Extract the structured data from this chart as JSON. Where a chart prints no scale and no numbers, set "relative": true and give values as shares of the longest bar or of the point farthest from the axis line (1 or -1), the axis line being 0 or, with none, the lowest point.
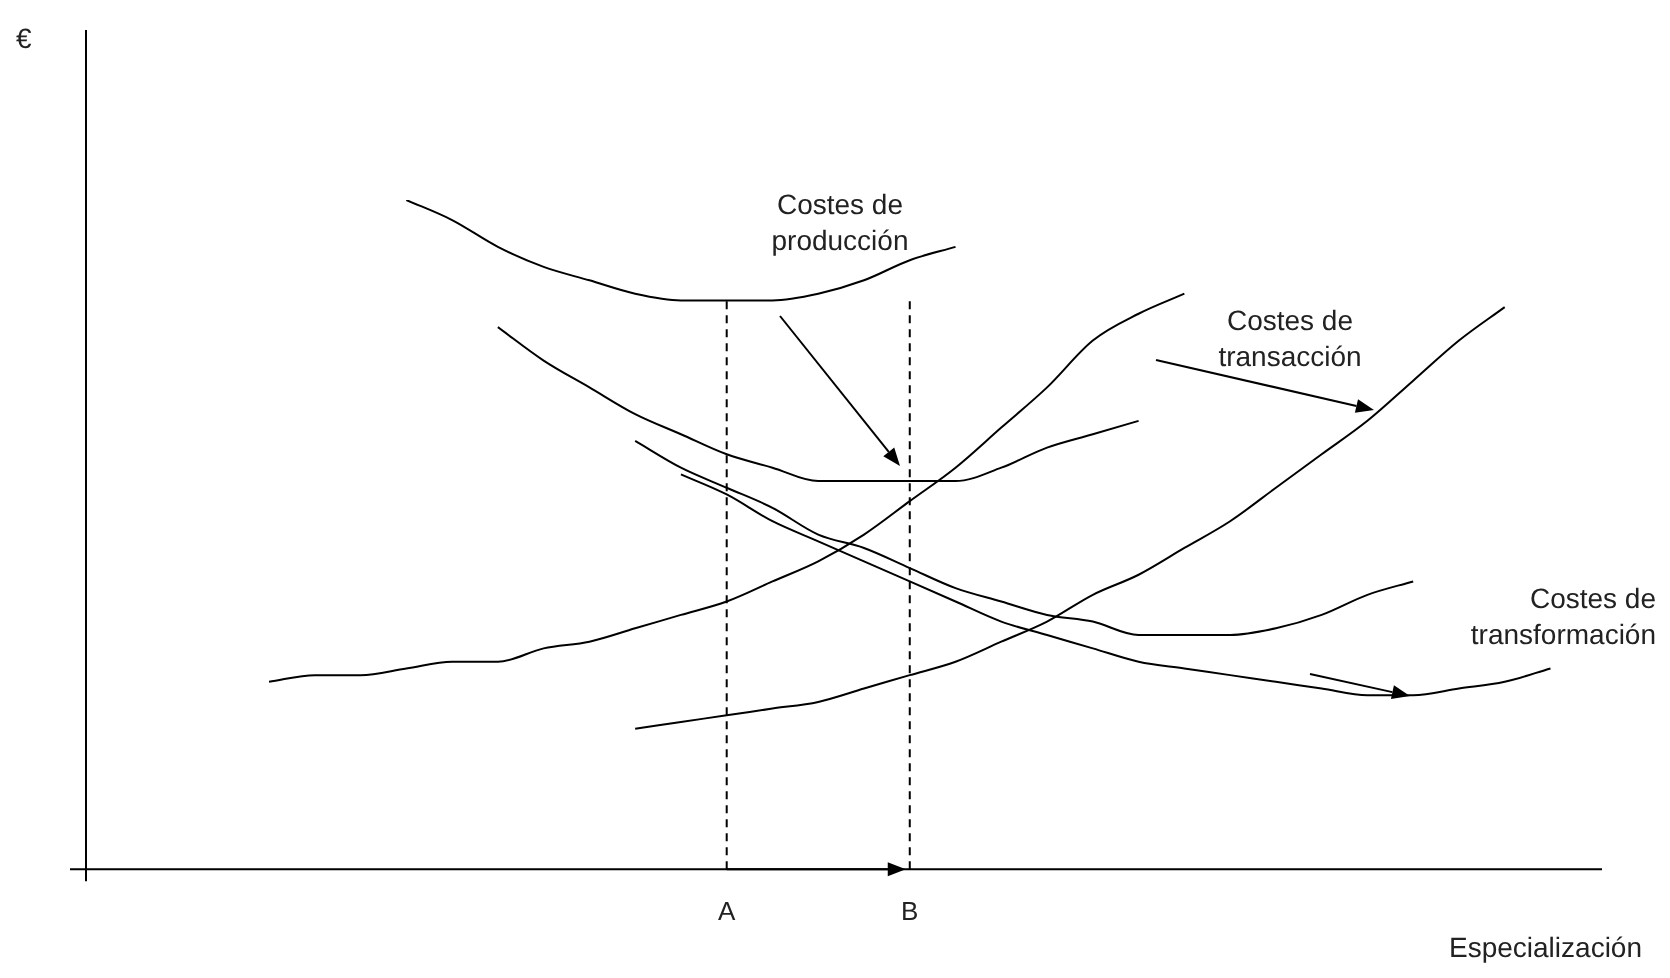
{
  "chart_data": {
    "type": "line",
    "relative": true,
    "xlabel": "Especialización",
    "categories": [
      null,
      null,
      null,
      null,
      null,
      null,
      null,
      null,
      null,
      null,
      null,
      null,
      null,
      null,
      "A",
      null,
      null,
      null,
      "B",
      null,
      null,
      null,
      null,
      null,
      null,
      null,
      null,
      null,
      null,
      null,
      null,
      null,
      null,
      null,
      null
    ],
    "series": [
      {
        "color": "#000000",
        "values": [
          null,
          null,
          null,
          null,
          null,
          null,
          null,
          1.0,
          0.97,
          0.93,
          0.9,
          0.88,
          0.86,
          0.85,
          0.85,
          0.85,
          0.86,
          0.88,
          0.91,
          0.93,
          null,
          null,
          null,
          null,
          null,
          null,
          null,
          null,
          null,
          null,
          null,
          null,
          null,
          null,
          null
        ]
      },
      {
        "color": "#000000",
        "values": [
          null,
          null,
          null,
          null,
          null,
          null,
          null,
          null,
          null,
          0.81,
          0.76,
          0.72,
          0.68,
          0.65,
          0.62,
          0.6,
          0.58,
          0.58,
          0.58,
          0.58,
          0.6,
          0.63,
          0.65,
          0.67,
          null,
          null,
          null,
          null,
          null,
          null,
          null,
          null,
          null,
          null,
          null
        ]
      },
      {
        "color": "#000000",
        "values": [
          null,
          null,
          null,
          null,
          0.28,
          0.29,
          0.29,
          0.3,
          0.31,
          0.31,
          0.33,
          0.34,
          0.36,
          0.38,
          0.4,
          0.43,
          0.46,
          0.5,
          0.55,
          0.6,
          0.66,
          0.72,
          0.79,
          0.83,
          0.86,
          null,
          null,
          null,
          null,
          null,
          null,
          null,
          null,
          null,
          null
        ]
      },
      {
        "color": "#000000",
        "values": [
          null,
          null,
          null,
          null,
          null,
          null,
          null,
          null,
          null,
          null,
          null,
          null,
          0.21,
          0.22,
          0.23,
          0.24,
          0.25,
          0.27,
          0.29,
          0.31,
          0.34,
          0.37,
          0.41,
          0.44,
          0.48,
          0.52,
          0.57,
          0.62,
          0.67,
          0.73,
          0.79,
          0.84,
          null,
          null,
          null
        ]
      },
      {
        "color": "#000000",
        "values": [
          null,
          null,
          null,
          null,
          null,
          null,
          null,
          null,
          null,
          null,
          null,
          null,
          0.64,
          0.6,
          0.57,
          0.54,
          0.5,
          0.48,
          0.45,
          0.42,
          0.4,
          0.38,
          0.37,
          0.35,
          0.35,
          0.35,
          0.36,
          0.38,
          0.41,
          0.43,
          null,
          null,
          null,
          null,
          null
        ]
      },
      {
        "color": "#000000",
        "values": [
          null,
          null,
          null,
          null,
          null,
          null,
          null,
          null,
          null,
          null,
          null,
          null,
          null,
          0.59,
          0.56,
          0.52,
          0.49,
          0.46,
          0.43,
          0.4,
          0.37,
          0.35,
          0.33,
          0.31,
          0.3,
          0.29,
          0.28,
          0.27,
          0.26,
          0.26,
          0.27,
          0.28,
          0.3,
          null,
          null
        ]
      }
    ],
    "ref_lines": [
      {
        "axis": "x",
        "value": "A",
        "line_style": "dashed"
      },
      {
        "axis": "x",
        "value": "B",
        "line_style": "dashed"
      }
    ],
    "annotations": [
      "€",
      "Costes de producción",
      "Costes de transacción",
      "Costes de transformación"
    ],
    "legend": false,
    "grid": false,
    "marker": "none",
    "line_style": "solid"
  }
}
